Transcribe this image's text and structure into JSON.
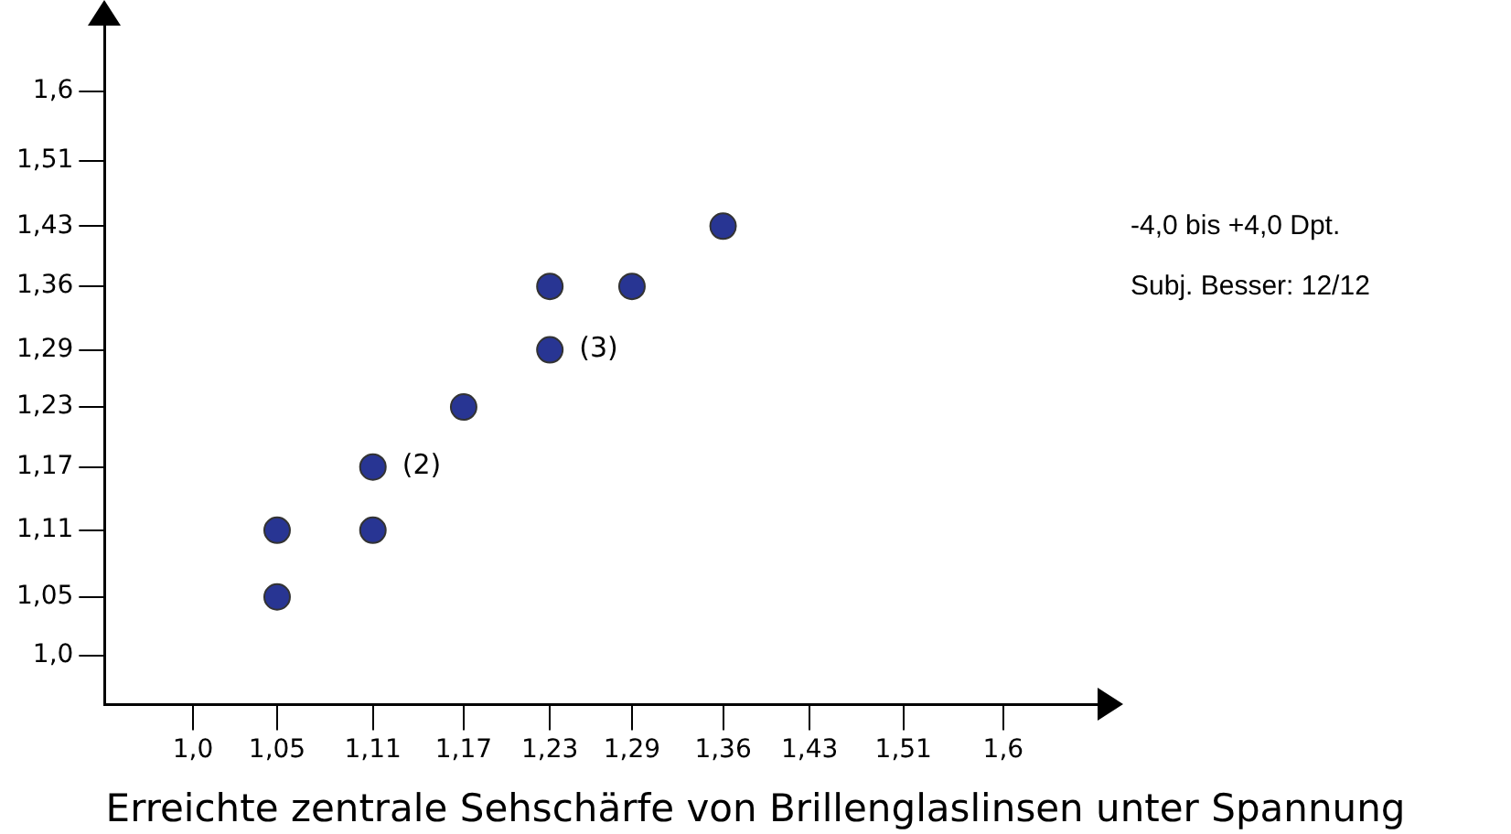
{
  "chart_data": {
    "type": "scatter",
    "xlabel": "Erreichte zentrale Sehschärfe von Brillenglaslinsen unter Spannung",
    "x": [
      1.05,
      1.05,
      1.11,
      1.11,
      1.17,
      1.23,
      1.23,
      1.29,
      1.36
    ],
    "series": [
      {
        "color": "#283593",
        "values": [
          1.05,
          1.11,
          1.11,
          1.17,
          1.23,
          1.29,
          1.36,
          1.36,
          1.43
        ]
      }
    ],
    "log": "xy",
    "xlim": [
      0.95,
      1.69
    ],
    "ylim": [
      0.96,
      1.69
    ],
    "xticks": [
      {
        "value": 1.0,
        "label": "1,0"
      },
      {
        "value": 1.05,
        "label": "1,05"
      },
      {
        "value": 1.11,
        "label": "1,11"
      },
      {
        "value": 1.17,
        "label": "1,17"
      },
      {
        "value": 1.23,
        "label": "1,23"
      },
      {
        "value": 1.29,
        "label": "1,29"
      },
      {
        "value": 1.36,
        "label": "1,36"
      },
      {
        "value": 1.43,
        "label": "1,43"
      },
      {
        "value": 1.51,
        "label": "1,51"
      },
      {
        "value": 1.6,
        "label": "1,6"
      }
    ],
    "yticks": [
      {
        "value": 1.0,
        "label": "1,0"
      },
      {
        "value": 1.05,
        "label": "1,05"
      },
      {
        "value": 1.11,
        "label": "1,11"
      },
      {
        "value": 1.17,
        "label": "1,17"
      },
      {
        "value": 1.23,
        "label": "1,23"
      },
      {
        "value": 1.29,
        "label": "1,29"
      },
      {
        "value": 1.36,
        "label": "1,36"
      },
      {
        "value": 1.43,
        "label": "1,43"
      },
      {
        "value": 1.51,
        "label": "1,51"
      },
      {
        "value": 1.6,
        "label": "1,6"
      }
    ],
    "grid": false,
    "legend": false,
    "marker": "circle",
    "annotations": [
      "-4,0 bis +4,0 Dpt.",
      "Subj. Besser: 12/12",
      {
        "text": "(2)",
        "x": 1.11,
        "y": 1.17
      },
      {
        "text": "(3)",
        "x": 1.23,
        "y": 1.29
      }
    ]
  }
}
